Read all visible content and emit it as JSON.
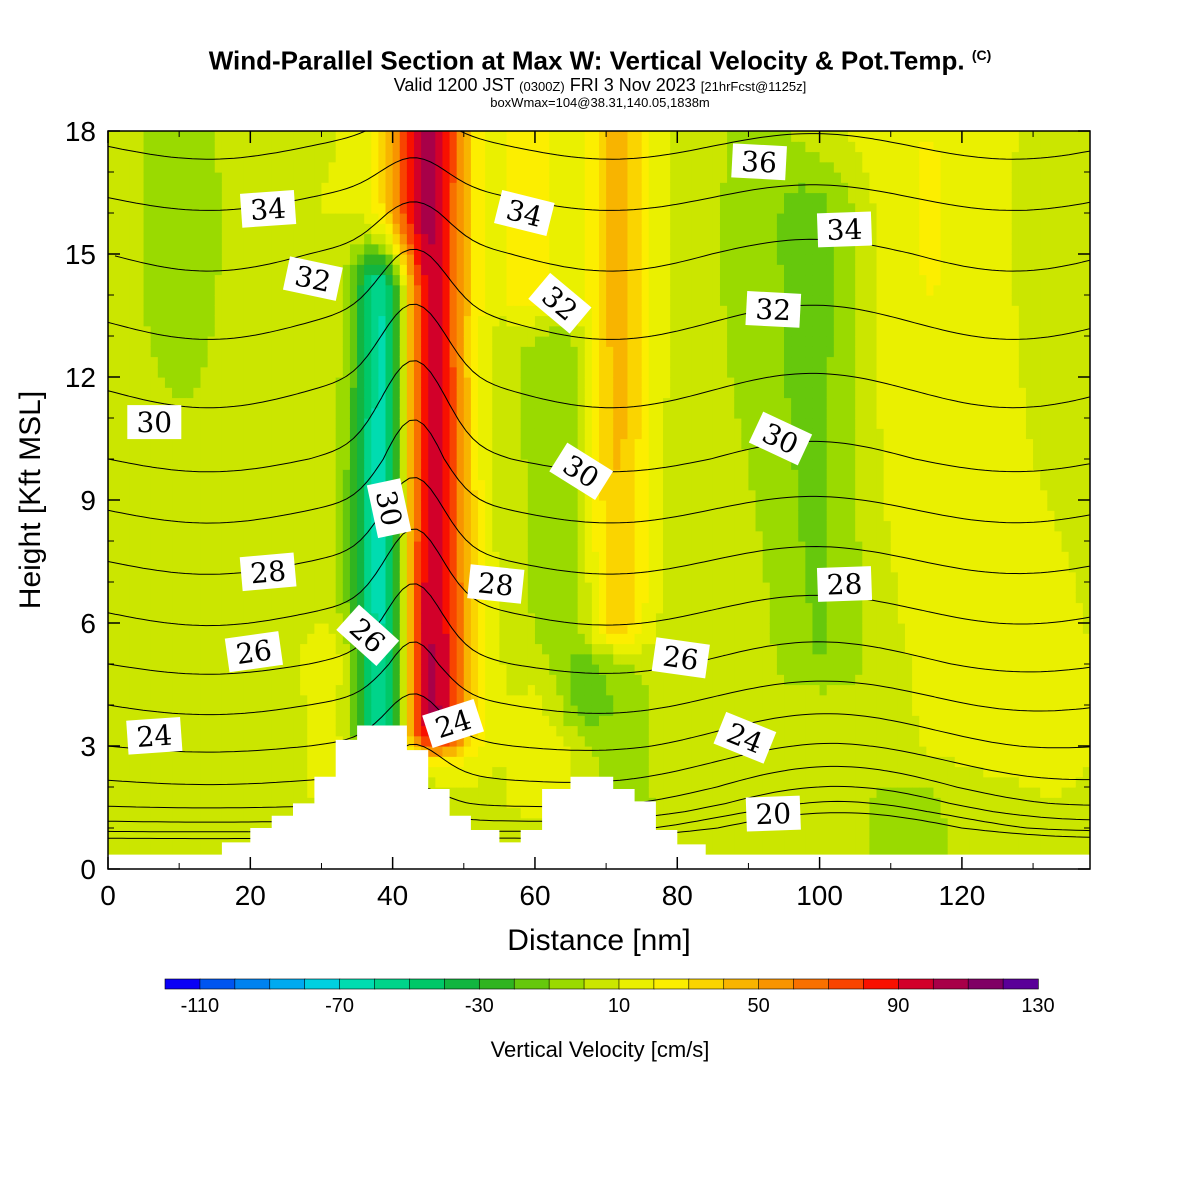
{
  "header": {
    "title": "Wind-Parallel Section at Max W: Vertical Velocity & Pot.Temp.",
    "copyright": "(C)",
    "valid_prefix": "Valid 1200 JST",
    "valid_utc": "(0300Z)",
    "valid_date": "FRI 3 Nov 2023",
    "forecast": "[21hrFcst@1125z]",
    "boxwmax": "boxWmax=104@38.31,140.05,1838m"
  },
  "colorbar": {
    "title": "Vertical Velocity [cm/s]",
    "boundaries": [
      -120,
      130
    ],
    "step": 10,
    "tick_labels": [
      "-110",
      "-70",
      "-30",
      "10",
      "50",
      "90",
      "130"
    ],
    "tick_values": [
      -110,
      -70,
      -30,
      10,
      50,
      90,
      130
    ],
    "colors": [
      "#0a00f5",
      "#0055f0",
      "#0082f0",
      "#00aaf0",
      "#00d0e0",
      "#00dcb0",
      "#00d48a",
      "#00c868",
      "#12b540",
      "#30b420",
      "#66c80c",
      "#9ada00",
      "#cbe600",
      "#eaf000",
      "#fcee00",
      "#fad400",
      "#f8b400",
      "#f89400",
      "#f87000",
      "#f84400",
      "#f81000",
      "#d2002a",
      "#a80048",
      "#800064",
      "#5a0098"
    ]
  },
  "chart_data": {
    "type": "heatmap",
    "title": "Wind-Parallel Section at Max W: Vertical Velocity & Pot.Temp.",
    "xlabel": "Distance [nm]",
    "ylabel": "Height [Kft MSL]",
    "xlim": [
      0,
      138
    ],
    "ylim": [
      0,
      18
    ],
    "x_ticks": [
      0,
      20,
      40,
      60,
      80,
      100,
      120
    ],
    "y_ticks": [
      0,
      3,
      6,
      9,
      12,
      15,
      18
    ],
    "x_tick_labels": [
      "0",
      "20",
      "40",
      "60",
      "80",
      "100",
      "120"
    ],
    "y_tick_labels": [
      "0",
      "3",
      "6",
      "9",
      "12",
      "15",
      "18"
    ],
    "grid": false,
    "heatmap_series": "Vertical Velocity [cm/s]",
    "updraft_peak_cm_s": 104,
    "velocity_features": [
      {
        "kind": "updraft",
        "x_center": 45,
        "x_width": 4,
        "z_min": 3.5,
        "z_max": 18,
        "peak": 104
      },
      {
        "kind": "downdraft",
        "x_center": 39,
        "x_width": 3,
        "z_min": 3.5,
        "z_max": 14,
        "peak": -95
      },
      {
        "kind": "updraft",
        "x_center": 71,
        "x_width": 3.5,
        "z_min": 6,
        "z_max": 18,
        "peak": 42
      },
      {
        "kind": "updraft",
        "x_center": 60,
        "x_width": 4,
        "z_min": 14,
        "z_max": 18,
        "peak": 30
      },
      {
        "kind": "downdraft",
        "x_center": 66,
        "x_width": 4,
        "z_min": 4,
        "z_max": 18,
        "peak": -20
      },
      {
        "kind": "downdraft",
        "x_center": 100,
        "x_width": 5,
        "z_min": 5,
        "z_max": 16,
        "peak": -18
      },
      {
        "kind": "updraft",
        "x_center": 32,
        "x_width": 4,
        "z_min": 2,
        "z_max": 5,
        "peak": 18
      },
      {
        "kind": "updraft",
        "x_center": 62,
        "x_width": 3,
        "z_min": 2,
        "z_max": 4,
        "peak": 16
      },
      {
        "kind": "updraft",
        "x_center": 120,
        "x_width": 12,
        "z_min": 3,
        "z_max": 18,
        "peak": 12
      }
    ],
    "terrain": {
      "x": [
        0,
        16,
        16,
        20,
        20,
        23,
        23,
        26,
        26,
        29,
        29,
        32,
        32,
        35,
        35,
        38,
        38,
        42,
        42,
        45,
        45,
        48,
        48,
        51,
        51,
        55,
        55,
        58,
        58,
        61,
        61,
        65,
        65,
        71,
        71,
        74,
        74,
        77,
        77,
        80,
        80,
        84,
        84,
        138
      ],
      "z": [
        0.35,
        0.35,
        0.65,
        0.65,
        1.0,
        1.0,
        1.3,
        1.3,
        1.6,
        1.6,
        2.25,
        2.25,
        3.15,
        3.15,
        3.5,
        3.5,
        3.5,
        3.5,
        2.9,
        2.9,
        1.95,
        1.95,
        1.3,
        1.3,
        0.95,
        0.95,
        0.65,
        0.65,
        0.95,
        0.95,
        1.95,
        1.95,
        2.25,
        2.25,
        1.95,
        1.95,
        1.65,
        1.65,
        0.95,
        0.95,
        0.6,
        0.6,
        0.35,
        0.35
      ]
    },
    "theta_contours": {
      "levels": [
        19,
        20,
        21,
        22,
        23,
        24,
        25,
        26,
        27,
        28,
        29,
        30,
        31,
        32,
        33,
        34,
        35,
        36
      ],
      "base_profile": {
        "z": [
          0,
          0.5,
          1,
          1.5,
          2,
          2.5,
          3,
          4,
          5,
          6,
          7,
          8,
          9,
          10,
          11,
          12,
          13,
          14,
          15,
          16,
          17,
          18
        ],
        "theta": [
          15.0,
          17.5,
          20.5,
          22.0,
          22.8,
          23.4,
          24.0,
          25.0,
          26.0,
          26.8,
          27.6,
          28.4,
          29.2,
          30.0,
          30.6,
          31.2,
          31.8,
          32.4,
          33.0,
          33.7,
          34.5,
          35.3
        ]
      },
      "cold_pool": {
        "x_center": 103,
        "x_width": 14,
        "z_scale": 1.6,
        "amplitude": -6.0
      },
      "updraft_perturbation": {
        "x_center": 43,
        "x_width": 4,
        "z_center": 9,
        "z_width": 6,
        "amplitude": -1.4
      },
      "labels": [
        {
          "text": "34",
          "x": 22.5,
          "z": 16.1,
          "angle": -4
        },
        {
          "text": "32",
          "x": 28.8,
          "z": 14.4,
          "angle": 12
        },
        {
          "text": "30",
          "x": 6.5,
          "z": 10.9,
          "angle": 0
        },
        {
          "text": "30",
          "x": 39.5,
          "z": 8.8,
          "angle": 78
        },
        {
          "text": "28",
          "x": 22.5,
          "z": 7.25,
          "angle": -5
        },
        {
          "text": "26",
          "x": 20.5,
          "z": 5.3,
          "angle": -8
        },
        {
          "text": "26",
          "x": 36.5,
          "z": 5.7,
          "angle": 42
        },
        {
          "text": "24",
          "x": 6.5,
          "z": 3.25,
          "angle": -4
        },
        {
          "text": "24",
          "x": 48.5,
          "z": 3.55,
          "angle": -18
        },
        {
          "text": "34",
          "x": 58.5,
          "z": 16.0,
          "angle": 14
        },
        {
          "text": "32",
          "x": 63.5,
          "z": 13.8,
          "angle": 40
        },
        {
          "text": "30",
          "x": 66.5,
          "z": 9.7,
          "angle": 32
        },
        {
          "text": "28",
          "x": 54.5,
          "z": 6.95,
          "angle": 6
        },
        {
          "text": "26",
          "x": 80.5,
          "z": 5.15,
          "angle": 8
        },
        {
          "text": "24",
          "x": 89.5,
          "z": 3.2,
          "angle": 22
        },
        {
          "text": "20",
          "x": 93.5,
          "z": 1.35,
          "angle": -2
        },
        {
          "text": "36",
          "x": 91.5,
          "z": 17.25,
          "angle": 3
        },
        {
          "text": "34",
          "x": 103.5,
          "z": 15.6,
          "angle": -2
        },
        {
          "text": "32",
          "x": 93.5,
          "z": 13.65,
          "angle": 3
        },
        {
          "text": "30",
          "x": 94.5,
          "z": 10.5,
          "angle": 25
        },
        {
          "text": "28",
          "x": 103.5,
          "z": 6.95,
          "angle": -2
        }
      ]
    }
  }
}
